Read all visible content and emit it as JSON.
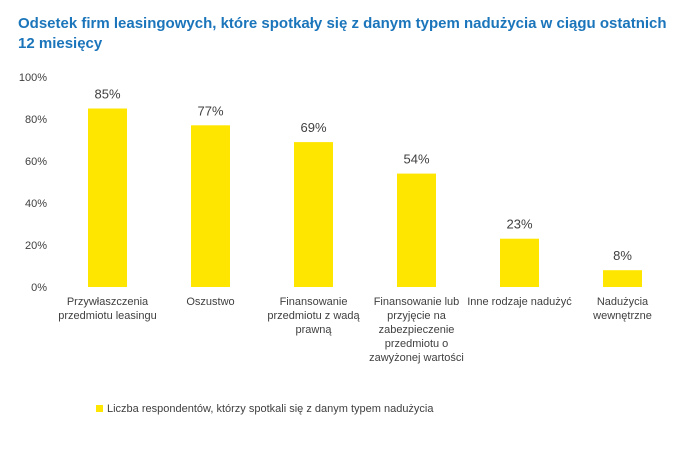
{
  "chart_data": {
    "type": "bar",
    "title": "Odsetek firm leasingowych, które spotkały się z danym typem nadużycia w ciągu ostatnich 12 miesięcy",
    "categories": [
      [
        "Przywłaszczenia",
        "przedmiotu leasingu"
      ],
      [
        "Oszustwo"
      ],
      [
        "Finansowanie",
        "przedmiotu z wadą",
        "prawną"
      ],
      [
        "Finansowanie lub",
        "przyjęcie na",
        "zabezpieczenie",
        "przedmiotu o",
        "zawyżonej wartości"
      ],
      [
        "Inne rodzaje nadużyć"
      ],
      [
        "Nadużycia",
        "wewnętrzne"
      ]
    ],
    "series": [
      {
        "name": "Liczba respondentów, którzy spotkali się z danym typem nadużycia",
        "values": [
          85,
          77,
          69,
          54,
          23,
          8
        ],
        "labels": [
          "85%",
          "77%",
          "69%",
          "54%",
          "23%",
          "8%"
        ],
        "color": "#ffe600"
      }
    ],
    "ylim": [
      0,
      100
    ],
    "yticks": [
      "0%",
      "20%",
      "40%",
      "60%",
      "80%",
      "100%"
    ],
    "grid": false,
    "legend_position": "bottom-left"
  }
}
